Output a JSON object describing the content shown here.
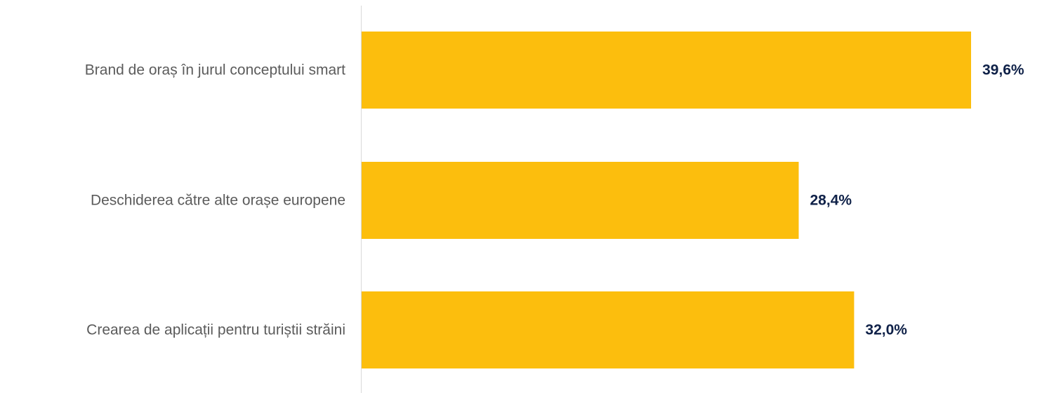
{
  "chart_data": {
    "type": "bar",
    "orientation": "horizontal",
    "categories": [
      "Brand de oraș în jurul conceptului smart",
      "Deschiderea către alte orașe europene",
      "Crearea de aplicații pentru turiștii străini"
    ],
    "values": [
      39.6,
      28.4,
      32.0
    ],
    "value_labels": [
      "39,6%",
      "28,4%",
      "32,0%"
    ],
    "xlim": [
      0,
      39.6
    ],
    "grid": false,
    "legend": "none"
  },
  "colors": {
    "bar": "#fcbe0d",
    "value_label": "#0f2148",
    "category_label": "#5b5b5b",
    "axis_line": "#d9d9d9"
  }
}
